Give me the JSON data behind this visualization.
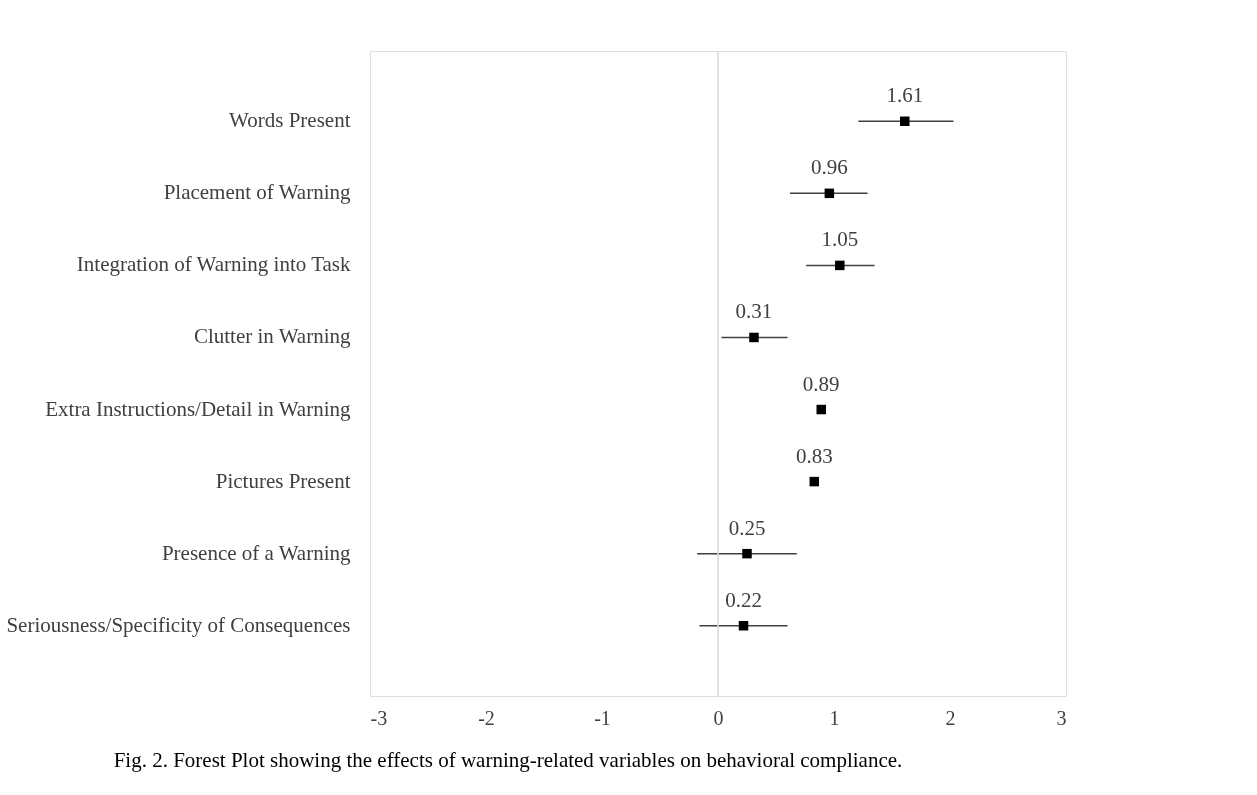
{
  "chart_data": {
    "type": "scatter",
    "orientation": "horizontal",
    "categories": [
      "Words Present",
      "Placement of Warning",
      "Integration of Warning into Task",
      "Clutter in Warning",
      "Extra Instructions/Detail in Warning",
      "Pictures Present",
      "Presence of a Warning",
      "Seriousness/Specificity of Consequences"
    ],
    "values": [
      1.61,
      0.96,
      1.05,
      0.31,
      0.89,
      0.83,
      0.25,
      0.22
    ],
    "errors": [
      [
        1.21,
        2.03
      ],
      [
        0.62,
        1.29
      ],
      [
        0.76,
        1.35
      ],
      [
        0.03,
        0.6
      ],
      null,
      null,
      [
        -0.18,
        0.68
      ],
      [
        -0.16,
        0.6
      ]
    ],
    "color": "#000000",
    "marker": "square",
    "data_labels": true,
    "xlim": [
      -3,
      3
    ],
    "xticks": [
      -3,
      -2,
      -1,
      0,
      1,
      2,
      3
    ],
    "grid": false,
    "ref_lines": [
      {
        "axis": "x",
        "value": 0,
        "color": "#d9d9d9"
      }
    ],
    "annotations": [
      "Fig. 2. Forest Plot showing the effects of warning-related variables on behavioral compliance."
    ]
  }
}
